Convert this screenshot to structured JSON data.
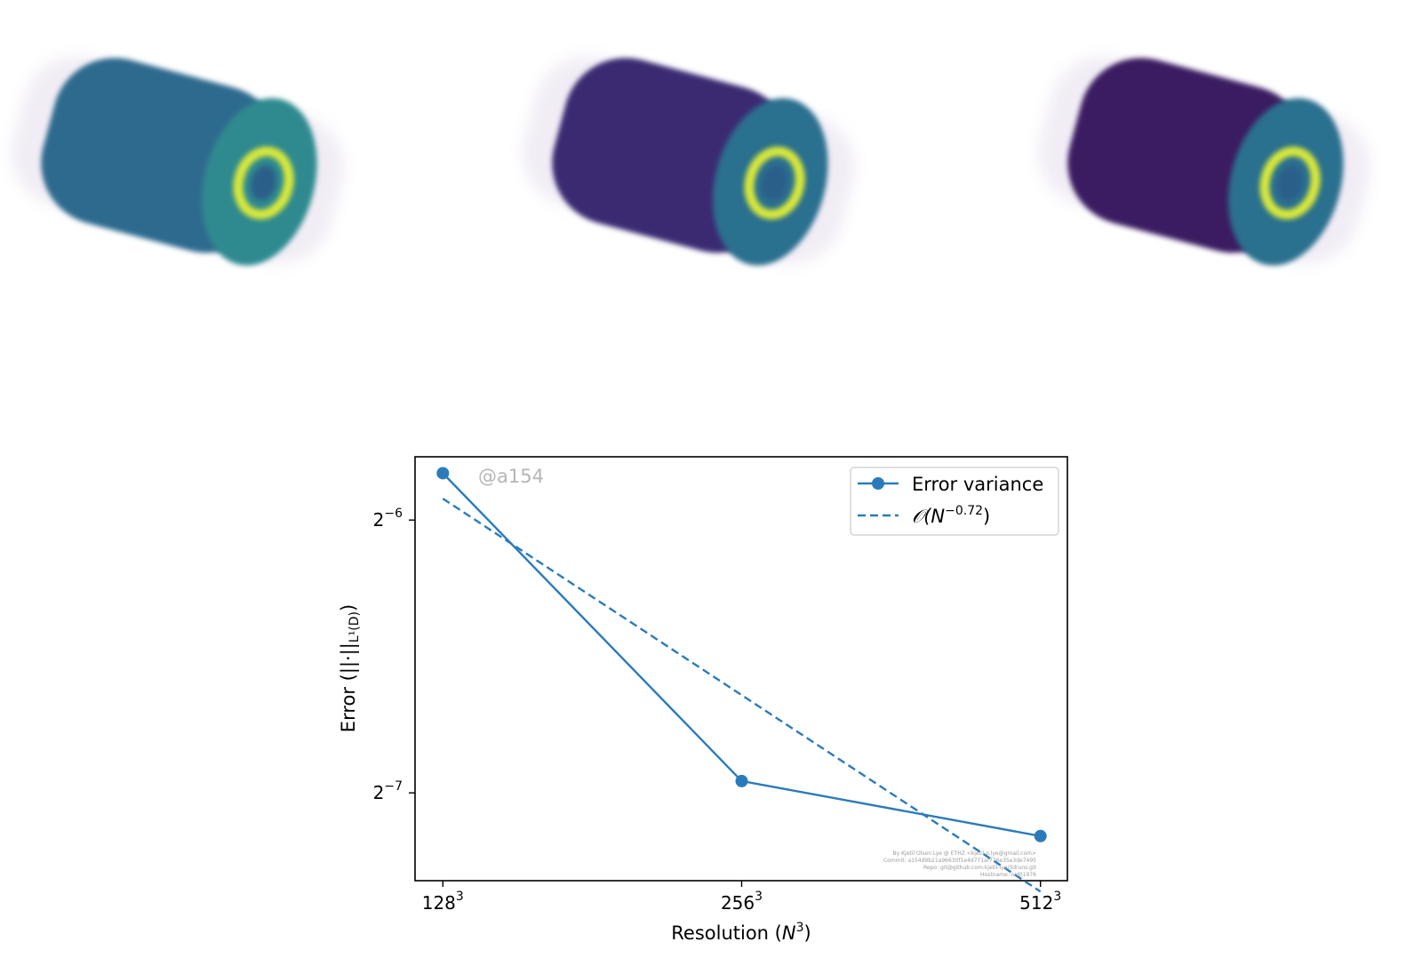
{
  "renders": {
    "panels": [
      {
        "name": "render-1",
        "shell": "#2f6a8e",
        "ring": "#d8e83a"
      },
      {
        "name": "render-2",
        "shell": "#3b2b72",
        "ring": "#d8e83a"
      },
      {
        "name": "render-3",
        "shell": "#3a1d62",
        "ring": "#d8e83a"
      }
    ]
  },
  "chart_data": {
    "type": "line",
    "xlabel": "Resolution (N³)",
    "ylabel": "Error (||·||L¹(D))",
    "x_scale": "log2",
    "y_scale": "log2",
    "x_ticks": [
      {
        "value": 128,
        "label_base": "128",
        "label_exp": "3"
      },
      {
        "value": 256,
        "label_base": "256",
        "label_exp": "3"
      },
      {
        "value": 512,
        "label_base": "512",
        "label_exp": "3"
      }
    ],
    "y_ticks": [
      {
        "value": 0.015625,
        "label_base": "2",
        "label_exp": "−6"
      },
      {
        "value": 0.0078125,
        "label_base": "2",
        "label_exp": "−7"
      }
    ],
    "xlim": [
      120,
      545
    ],
    "ylim": [
      0.00625,
      0.01835
    ],
    "series": [
      {
        "name": "Error variance",
        "style": "solid-marker",
        "color": "#2b7bba",
        "x": [
          128,
          256,
          512
        ],
        "y": [
          0.0176,
          0.00805,
          0.007
        ]
      },
      {
        "name": "𝒪(N^−0.72)",
        "name_prefix": "𝒪(N",
        "name_exp": "−0.72",
        "name_suffix": ")",
        "style": "dashed",
        "color": "#2b7bba",
        "x": [
          128,
          512
        ],
        "y": [
          0.0165,
          0.00608
        ]
      }
    ],
    "legend": {
      "position": "top-right"
    },
    "grid": false,
    "watermark": "@a154",
    "credit_lines": [
      "By Kjetil Olsen Lye @ ETHZ <kjetil.o.lye@gmail.com>",
      "Commit: a154d9b21a96630f1e4d771af776e35e3de7495",
      "Repo: git@github.com:kjetil-lye/3druns.git",
      "Hostname: nid01976"
    ]
  }
}
